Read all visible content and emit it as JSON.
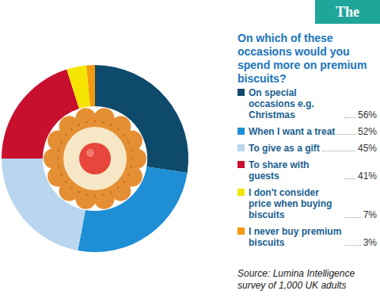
{
  "chart_data": {
    "type": "pie",
    "title": "On which of these occasions would you spend more on premium biscuits?",
    "categories": [
      "On special occasions e.g. Christmas",
      "When I want a treat",
      "To give as a gift",
      "To share with guests",
      "I don't consider price when buying biscuits",
      "I never buy premium biscuits"
    ],
    "values": [
      56,
      52,
      45,
      41,
      7,
      3
    ],
    "value_labels": [
      "56%",
      "52%",
      "45%",
      "41%",
      "7%",
      "3%"
    ],
    "colors": [
      "#0d4a6b",
      "#1e8fd5",
      "#b9d5ef",
      "#c8102e",
      "#f5e400",
      "#f39a12"
    ],
    "legend": "right",
    "publisher": "The Grocer",
    "source": "Source: Lumina Intelligence survey of 1,000 UK adults"
  }
}
